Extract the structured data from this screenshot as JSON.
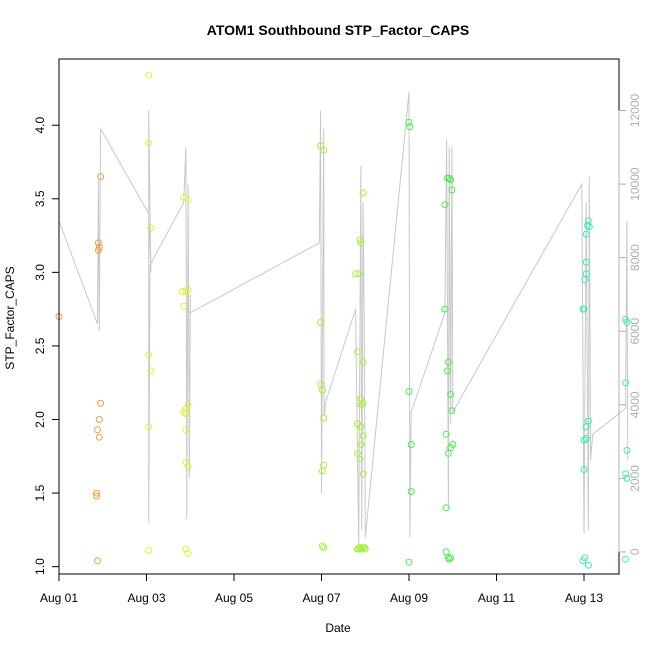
{
  "chart_data": {
    "type": "scatter",
    "title": "ATOM1 Southbound STP_Factor_CAPS",
    "xlabel": "Date",
    "ylabel": "STP_Factor_CAPS",
    "xlim": [
      0,
      12.8
    ],
    "ylim": [
      0.95,
      4.45
    ],
    "y2lim": [
      -600,
      13400
    ],
    "x_ticks": [
      {
        "value": 0,
        "label": "Aug 01"
      },
      {
        "value": 2,
        "label": "Aug 03"
      },
      {
        "value": 4,
        "label": "Aug 05"
      },
      {
        "value": 6,
        "label": "Aug 07"
      },
      {
        "value": 8,
        "label": "Aug 09"
      },
      {
        "value": 10,
        "label": "Aug 11"
      },
      {
        "value": 12,
        "label": "Aug 13"
      }
    ],
    "y_ticks": [
      1.0,
      1.5,
      2.0,
      2.5,
      3.0,
      3.5,
      4.0
    ],
    "y2_ticks": [
      0,
      2000,
      4000,
      6000,
      8000,
      10000,
      12000
    ],
    "series": [
      {
        "color": "#f39c3b",
        "points": [
          [
            0.0,
            2.7
          ],
          [
            0.88,
            1.04
          ],
          [
            0.86,
            1.48
          ],
          [
            0.86,
            1.5
          ],
          [
            0.88,
            1.93
          ],
          [
            0.92,
            1.88
          ],
          [
            0.92,
            2.0
          ],
          [
            0.95,
            2.11
          ],
          [
            0.9,
            3.15
          ],
          [
            0.92,
            3.17
          ],
          [
            0.9,
            3.2
          ],
          [
            0.95,
            3.65
          ]
        ]
      },
      {
        "color": "#dcf23c",
        "points": [
          [
            2.05,
            4.34
          ],
          [
            2.05,
            3.88
          ],
          [
            2.1,
            3.3
          ],
          [
            2.05,
            2.44
          ],
          [
            2.1,
            2.33
          ],
          [
            2.05,
            1.95
          ],
          [
            2.05,
            1.11
          ],
          [
            2.85,
            3.51
          ],
          [
            2.95,
            3.49
          ],
          [
            2.82,
            2.87
          ],
          [
            2.9,
            2.87
          ],
          [
            2.95,
            2.88
          ],
          [
            2.85,
            2.77
          ],
          [
            2.95,
            2.1
          ],
          [
            2.9,
            2.07
          ],
          [
            2.85,
            2.05
          ],
          [
            2.9,
            2.04
          ],
          [
            2.95,
            1.68
          ],
          [
            2.9,
            1.71
          ],
          [
            2.9,
            1.12
          ],
          [
            2.95,
            1.09
          ],
          [
            2.9,
            1.93
          ]
        ]
      },
      {
        "color": "#a8f03c",
        "points": [
          [
            5.98,
            3.86
          ],
          [
            6.05,
            3.83
          ],
          [
            5.98,
            2.66
          ],
          [
            5.98,
            2.24
          ],
          [
            6.02,
            2.2
          ],
          [
            6.05,
            2.01
          ],
          [
            6.05,
            1.69
          ],
          [
            6.02,
            1.65
          ],
          [
            6.02,
            1.14
          ],
          [
            6.05,
            1.13
          ],
          [
            6.78,
            2.99
          ],
          [
            6.85,
            2.99
          ],
          [
            6.88,
            3.22
          ],
          [
            6.9,
            3.2
          ],
          [
            6.95,
            3.54
          ],
          [
            6.82,
            2.46
          ],
          [
            6.95,
            2.39
          ],
          [
            6.9,
            2.14
          ],
          [
            6.95,
            2.11
          ],
          [
            6.9,
            2.1
          ],
          [
            6.82,
            1.97
          ],
          [
            6.9,
            1.95
          ],
          [
            6.9,
            1.83
          ],
          [
            6.95,
            1.89
          ],
          [
            6.82,
            1.77
          ],
          [
            6.88,
            1.73
          ],
          [
            6.95,
            1.63
          ],
          [
            6.82,
            1.12
          ],
          [
            6.85,
            1.12
          ],
          [
            6.88,
            1.13
          ],
          [
            6.9,
            1.12
          ],
          [
            6.92,
            1.12
          ],
          [
            6.95,
            1.13
          ],
          [
            6.98,
            1.13
          ],
          [
            7.0,
            1.12
          ]
        ]
      },
      {
        "color": "#4eea52",
        "points": [
          [
            8.0,
            4.02
          ],
          [
            8.02,
            3.99
          ],
          [
            8.0,
            2.19
          ],
          [
            8.05,
            1.83
          ],
          [
            8.05,
            1.51
          ],
          [
            8.0,
            1.03
          ],
          [
            8.82,
            3.46
          ],
          [
            8.88,
            3.64
          ],
          [
            8.92,
            3.64
          ],
          [
            8.95,
            3.63
          ],
          [
            8.98,
            3.56
          ],
          [
            8.82,
            2.75
          ],
          [
            8.9,
            2.39
          ],
          [
            8.88,
            2.33
          ],
          [
            8.95,
            2.17
          ],
          [
            8.98,
            2.06
          ],
          [
            8.85,
            1.9
          ],
          [
            9.0,
            1.83
          ],
          [
            8.95,
            1.81
          ],
          [
            8.9,
            1.77
          ],
          [
            8.85,
            1.4
          ],
          [
            8.85,
            1.1
          ],
          [
            8.9,
            1.06
          ],
          [
            8.92,
            1.05
          ],
          [
            8.95,
            1.06
          ]
        ]
      },
      {
        "color": "#3eecb6",
        "points": [
          [
            11.98,
            2.75
          ],
          [
            12.05,
            3.26
          ],
          [
            12.08,
            3.32
          ],
          [
            12.1,
            3.35
          ],
          [
            12.12,
            3.31
          ],
          [
            12.05,
            3.07
          ],
          [
            12.05,
            2.99
          ],
          [
            12.02,
            2.95
          ],
          [
            12.0,
            2.75
          ],
          [
            12.05,
            1.95
          ],
          [
            12.1,
            1.99
          ],
          [
            12.0,
            1.86
          ],
          [
            12.05,
            1.87
          ],
          [
            12.0,
            1.66
          ],
          [
            11.98,
            1.04
          ],
          [
            12.02,
            1.06
          ],
          [
            12.1,
            1.01
          ],
          [
            12.95,
            2.68
          ],
          [
            12.98,
            2.66
          ],
          [
            12.95,
            2.25
          ],
          [
            12.98,
            1.79
          ],
          [
            12.95,
            1.63
          ],
          [
            12.98,
            1.6
          ],
          [
            12.95,
            1.05
          ]
        ]
      }
    ],
    "trace": {
      "color": "#c8c8c8",
      "points": [
        [
          0.0,
          9000
        ],
        [
          0.88,
          6200
        ],
        [
          0.9,
          10100
        ],
        [
          0.92,
          6000
        ],
        [
          0.95,
          11500
        ],
        [
          2.05,
          9200
        ],
        [
          2.1,
          7600
        ],
        [
          2.05,
          12000
        ],
        [
          2.05,
          800
        ],
        [
          2.08,
          7800
        ],
        [
          2.85,
          9500
        ],
        [
          2.9,
          11000
        ],
        [
          2.92,
          900
        ],
        [
          2.95,
          10000
        ],
        [
          2.98,
          2000
        ],
        [
          3.0,
          7000
        ],
        [
          3.0,
          6500
        ],
        [
          5.95,
          8400
        ],
        [
          5.98,
          12000
        ],
        [
          6.0,
          1600
        ],
        [
          6.05,
          11500
        ],
        [
          6.06,
          3700
        ],
        [
          6.1,
          4100
        ],
        [
          6.78,
          6600
        ],
        [
          6.85,
          200
        ],
        [
          6.9,
          10500
        ],
        [
          6.92,
          600
        ],
        [
          6.95,
          9500
        ],
        [
          6.98,
          5500
        ],
        [
          7.0,
          400
        ],
        [
          8.0,
          12500
        ],
        [
          8.02,
          400
        ],
        [
          8.05,
          3800
        ],
        [
          8.82,
          6500
        ],
        [
          8.86,
          11200
        ],
        [
          8.9,
          1200
        ],
        [
          8.92,
          11000
        ],
        [
          8.95,
          3500
        ],
        [
          8.98,
          11000
        ],
        [
          9.0,
          3800
        ],
        [
          11.95,
          10000
        ],
        [
          12.0,
          500
        ],
        [
          12.05,
          9500
        ],
        [
          12.1,
          600
        ],
        [
          12.12,
          10200
        ],
        [
          12.15,
          2500
        ],
        [
          12.2,
          3200
        ],
        [
          12.95,
          3900
        ],
        [
          12.98,
          9000
        ],
        [
          13.0,
          2500
        ]
      ]
    }
  }
}
